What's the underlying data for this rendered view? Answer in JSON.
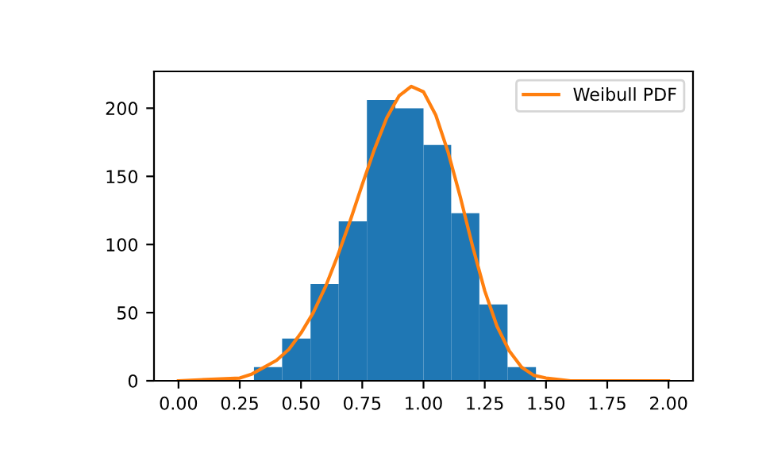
{
  "chart_data": {
    "type": "histogram",
    "bins": [
      0.308,
      0.423,
      0.539,
      0.654,
      0.769,
      0.885,
      1.0,
      1.113,
      1.228,
      1.343,
      1.459
    ],
    "values": [
      10,
      31,
      71,
      117,
      206,
      200,
      173,
      123,
      56,
      10
    ],
    "color": "#1f77b4",
    "series": [
      {
        "type": "line",
        "name": "Weibull PDF",
        "color": "#ff7f0e",
        "x": [
          0,
          0.25,
          0.3,
          0.4,
          0.45,
          0.5,
          0.55,
          0.6,
          0.65,
          0.7,
          0.75,
          0.8,
          0.85,
          0.9,
          0.95,
          1.0,
          1.05,
          1.1,
          1.15,
          1.2,
          1.25,
          1.3,
          1.35,
          1.4,
          1.45,
          1.5,
          1.6,
          2.0
        ],
        "values": [
          0,
          2,
          5,
          15,
          23,
          35,
          50,
          69,
          92,
          117,
          144,
          170,
          193,
          209,
          216,
          212,
          195,
          168,
          135,
          99,
          66,
          40,
          22,
          10,
          4,
          2,
          0,
          0
        ]
      }
    ],
    "xlim": [
      -0.1,
      2.1
    ],
    "xticks": [
      {
        "value": 0,
        "label": "0.00"
      },
      {
        "value": 0.25,
        "label": "0.25"
      },
      {
        "value": 0.5,
        "label": "0.50"
      },
      {
        "value": 0.75,
        "label": "0.75"
      },
      {
        "value": 1,
        "label": "1.00"
      },
      {
        "value": 1.25,
        "label": "1.25"
      },
      {
        "value": 1.5,
        "label": "1.50"
      },
      {
        "value": 1.75,
        "label": "1.75"
      },
      {
        "value": 2,
        "label": "2.00"
      }
    ],
    "ylim": [
      0,
      227
    ],
    "yticks": [
      0,
      50,
      100,
      150,
      200
    ],
    "legend": "top right",
    "grid": false
  }
}
